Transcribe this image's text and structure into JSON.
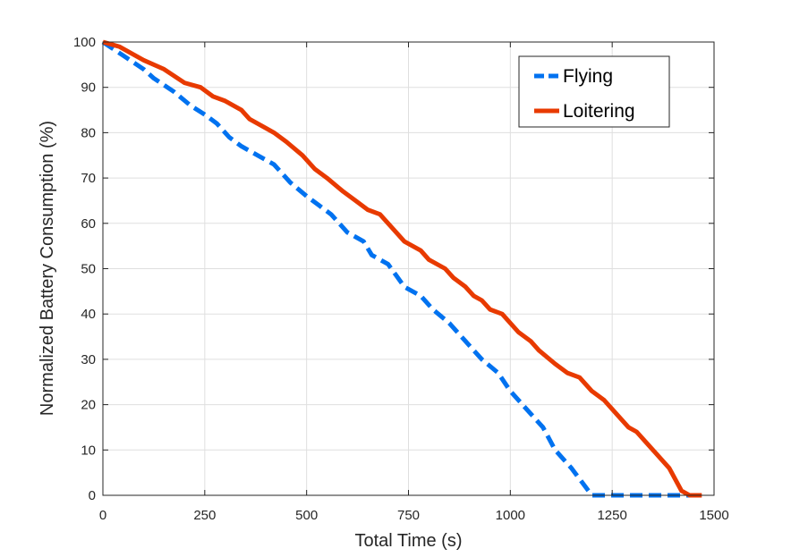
{
  "chart_data": {
    "type": "line",
    "title": "",
    "xlabel": "Total Time (s)",
    "ylabel": "Normalized Battery Consumption (%)",
    "xlim": [
      0,
      1500
    ],
    "ylim": [
      0,
      100
    ],
    "x_ticks": [
      0,
      250,
      500,
      750,
      1000,
      1250,
      1500
    ],
    "y_ticks": [
      0,
      10,
      20,
      30,
      40,
      50,
      60,
      70,
      80,
      90,
      100
    ],
    "grid": true,
    "legend_position": "top-right",
    "series": [
      {
        "name": "Flying",
        "color": "#0072F0",
        "line_style": "dashed",
        "points": [
          [
            0,
            100
          ],
          [
            50,
            97
          ],
          [
            100,
            94
          ],
          [
            125,
            92
          ],
          [
            175,
            89
          ],
          [
            215,
            86
          ],
          [
            250,
            84
          ],
          [
            280,
            82
          ],
          [
            310,
            79
          ],
          [
            340,
            77
          ],
          [
            380,
            75
          ],
          [
            420,
            73
          ],
          [
            460,
            69
          ],
          [
            500,
            66
          ],
          [
            530,
            64
          ],
          [
            560,
            62
          ],
          [
            600,
            58
          ],
          [
            640,
            56
          ],
          [
            660,
            53
          ],
          [
            700,
            51
          ],
          [
            740,
            46
          ],
          [
            780,
            44
          ],
          [
            810,
            41
          ],
          [
            850,
            38
          ],
          [
            890,
            34
          ],
          [
            930,
            30
          ],
          [
            970,
            27
          ],
          [
            1000,
            23
          ],
          [
            1040,
            19
          ],
          [
            1080,
            15
          ],
          [
            1110,
            10
          ],
          [
            1150,
            6
          ],
          [
            1175,
            3
          ],
          [
            1200,
            0
          ],
          [
            1250,
            0
          ],
          [
            1470,
            0
          ]
        ]
      },
      {
        "name": "Loitering",
        "color": "#E83A00",
        "line_style": "solid",
        "points": [
          [
            0,
            100
          ],
          [
            40,
            99
          ],
          [
            100,
            96
          ],
          [
            150,
            94
          ],
          [
            200,
            91
          ],
          [
            240,
            90
          ],
          [
            270,
            88
          ],
          [
            300,
            87
          ],
          [
            340,
            85
          ],
          [
            360,
            83
          ],
          [
            400,
            81
          ],
          [
            420,
            80
          ],
          [
            450,
            78
          ],
          [
            490,
            75
          ],
          [
            520,
            72
          ],
          [
            550,
            70
          ],
          [
            590,
            67
          ],
          [
            620,
            65
          ],
          [
            650,
            63
          ],
          [
            680,
            62
          ],
          [
            700,
            60
          ],
          [
            740,
            56
          ],
          [
            780,
            54
          ],
          [
            800,
            52
          ],
          [
            840,
            50
          ],
          [
            860,
            48
          ],
          [
            890,
            46
          ],
          [
            910,
            44
          ],
          [
            930,
            43
          ],
          [
            950,
            41
          ],
          [
            980,
            40
          ],
          [
            1020,
            36
          ],
          [
            1050,
            34
          ],
          [
            1070,
            32
          ],
          [
            1110,
            29
          ],
          [
            1140,
            27
          ],
          [
            1170,
            26
          ],
          [
            1200,
            23
          ],
          [
            1230,
            21
          ],
          [
            1260,
            18
          ],
          [
            1290,
            15
          ],
          [
            1310,
            14
          ],
          [
            1340,
            11
          ],
          [
            1370,
            8
          ],
          [
            1390,
            6
          ],
          [
            1420,
            1
          ],
          [
            1440,
            0
          ],
          [
            1470,
            0
          ]
        ]
      }
    ]
  }
}
